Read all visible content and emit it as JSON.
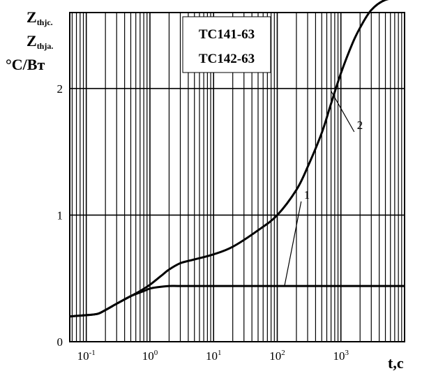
{
  "chart_data": {
    "type": "line",
    "ylabel_lines": [
      {
        "main": "Z",
        "sub": "thjc."
      },
      {
        "main": "Z",
        "sub": "thja."
      },
      {
        "main": "°C/Bт",
        "sub": ""
      }
    ],
    "xlabel": "t,c",
    "legend": [
      "TC141-63",
      "TC142-63"
    ],
    "x_scale": "log",
    "xlim": [
      0.055,
      10000
    ],
    "ylim": [
      0,
      2.6
    ],
    "x_ticks": [
      {
        "base": "10",
        "exp": "-1",
        "value": 0.1
      },
      {
        "base": "10",
        "exp": "0",
        "value": 1
      },
      {
        "base": "10",
        "exp": "1",
        "value": 10
      },
      {
        "base": "10",
        "exp": "2",
        "value": 100
      },
      {
        "base": "10",
        "exp": "3",
        "value": 1000
      }
    ],
    "y_ticks": [
      {
        "label": "0",
        "value": 0
      },
      {
        "label": "1",
        "value": 1
      },
      {
        "label": "2",
        "value": 2
      }
    ],
    "grid": true,
    "series": [
      {
        "name": "1",
        "x": [
          0.055,
          0.1,
          0.15,
          0.2,
          0.3,
          0.5,
          0.8,
          1.0,
          1.3,
          2,
          3,
          10,
          100,
          1000,
          10000
        ],
        "y": [
          0.2,
          0.21,
          0.22,
          0.25,
          0.3,
          0.36,
          0.4,
          0.42,
          0.43,
          0.44,
          0.44,
          0.44,
          0.44,
          0.44,
          0.44
        ]
      },
      {
        "name": "2",
        "x": [
          0.055,
          0.1,
          0.15,
          0.2,
          0.3,
          0.5,
          0.7,
          1.0,
          1.5,
          2,
          3,
          5,
          10,
          20,
          50,
          100,
          200,
          300,
          500,
          700,
          1000,
          1500,
          2000,
          3000,
          5000,
          10000
        ],
        "y": [
          0.2,
          0.21,
          0.22,
          0.25,
          0.3,
          0.36,
          0.4,
          0.45,
          0.52,
          0.57,
          0.62,
          0.65,
          0.69,
          0.75,
          0.88,
          1.0,
          1.2,
          1.38,
          1.65,
          1.88,
          2.12,
          2.35,
          2.48,
          2.62,
          2.7,
          2.72
        ]
      }
    ],
    "annotations": [
      {
        "text": "1",
        "points_to_series": "1",
        "label_at": [
          250,
          1.13
        ],
        "arrow_to": [
          130,
          0.44
        ]
      },
      {
        "text": "2",
        "points_to_series": "2",
        "label_at": [
          1700,
          1.68
        ],
        "arrow_to": [
          700,
          1.98
        ]
      }
    ]
  }
}
